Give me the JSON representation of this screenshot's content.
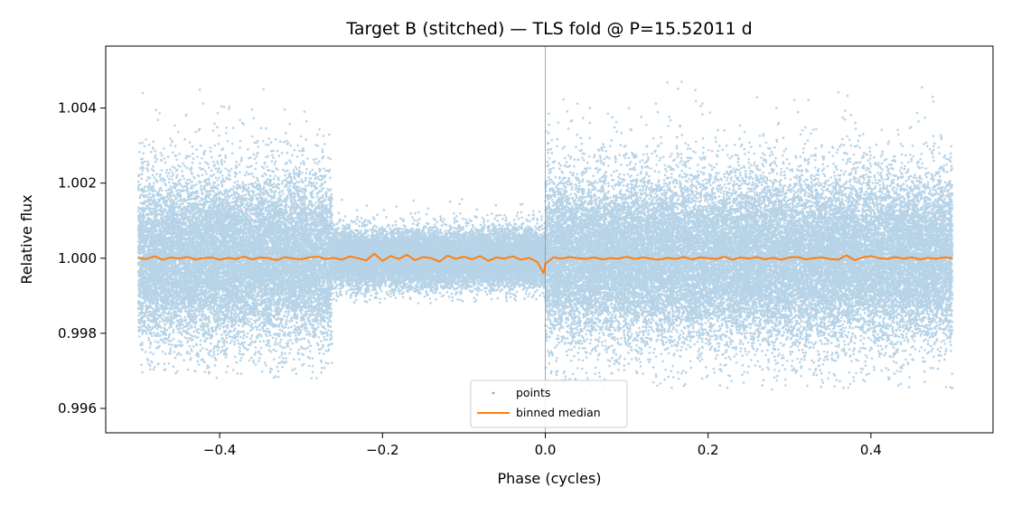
{
  "chart_data": {
    "type": "scatter",
    "title": "Target B (stitched) — TLS fold @ P=15.52011 d",
    "xlabel": "Phase (cycles)",
    "ylabel": "Relative flux",
    "xlim": [
      -0.54,
      0.55
    ],
    "ylim": [
      0.99535,
      1.00565
    ],
    "x_ticks": [
      -0.4,
      -0.2,
      0.0,
      0.2,
      0.4
    ],
    "x_tick_labels": [
      "−0.4",
      "−0.2",
      "0.0",
      "0.2",
      "0.4"
    ],
    "y_ticks": [
      0.996,
      0.998,
      1.0,
      1.002,
      1.004
    ],
    "y_tick_labels": [
      "0.996",
      "0.998",
      "1.000",
      "1.002",
      "1.004"
    ],
    "grid": false,
    "vline_x": 0.0,
    "legend": {
      "position": "bottom-center",
      "entries": [
        {
          "label": "points",
          "marker": "dot",
          "color": "#1f77b4"
        },
        {
          "label": "binned median",
          "marker": "line",
          "color": "#ff7f0e"
        }
      ]
    },
    "series": [
      {
        "name": "points",
        "kind": "scatter",
        "color": "#1f77b4",
        "n_points": 60000,
        "x_range": [
          -0.5,
          0.5
        ],
        "center": 1.0,
        "segments": [
          {
            "x_range": [
              -0.5,
              -0.262
            ],
            "core_range": [
              0.9979,
              1.0021
            ],
            "spread_range": [
              0.9968,
              1.0045
            ]
          },
          {
            "x_range": [
              -0.262,
              0.0
            ],
            "core_range": [
              0.9994,
              1.0008
            ],
            "spread_range": [
              0.9988,
              1.0016
            ]
          },
          {
            "x_range": [
              0.0,
              0.5
            ],
            "core_range": [
              0.9979,
              1.0021
            ],
            "spread_range": [
              0.9965,
              1.0048
            ]
          }
        ]
      },
      {
        "name": "binned median",
        "kind": "line",
        "color": "#ff7f0e",
        "x": [
          -0.5,
          -0.49,
          -0.48,
          -0.47,
          -0.46,
          -0.45,
          -0.44,
          -0.43,
          -0.42,
          -0.41,
          -0.4,
          -0.39,
          -0.38,
          -0.37,
          -0.36,
          -0.35,
          -0.34,
          -0.33,
          -0.32,
          -0.31,
          -0.3,
          -0.29,
          -0.28,
          -0.27,
          -0.26,
          -0.25,
          -0.24,
          -0.23,
          -0.22,
          -0.21,
          -0.2,
          -0.19,
          -0.18,
          -0.17,
          -0.16,
          -0.15,
          -0.14,
          -0.13,
          -0.12,
          -0.11,
          -0.1,
          -0.09,
          -0.08,
          -0.07,
          -0.06,
          -0.05,
          -0.04,
          -0.03,
          -0.02,
          -0.01,
          -0.002,
          0.0,
          0.01,
          0.02,
          0.03,
          0.04,
          0.05,
          0.06,
          0.07,
          0.08,
          0.09,
          0.1,
          0.11,
          0.12,
          0.13,
          0.14,
          0.15,
          0.16,
          0.17,
          0.18,
          0.19,
          0.2,
          0.21,
          0.22,
          0.23,
          0.24,
          0.25,
          0.26,
          0.27,
          0.28,
          0.29,
          0.3,
          0.31,
          0.32,
          0.33,
          0.34,
          0.35,
          0.36,
          0.37,
          0.38,
          0.39,
          0.4,
          0.41,
          0.42,
          0.43,
          0.44,
          0.45,
          0.46,
          0.47,
          0.48,
          0.49,
          0.5
        ],
        "values": [
          1.0,
          0.99998,
          1.00005,
          0.99996,
          1.00002,
          0.99999,
          1.00003,
          0.99997,
          1.0,
          1.00002,
          0.99996,
          1.00001,
          0.99998,
          1.00004,
          0.99997,
          1.00002,
          1.0,
          0.99995,
          1.00003,
          0.99999,
          0.99997,
          1.00002,
          1.00004,
          0.99998,
          1.00001,
          0.99996,
          1.00005,
          1.0,
          0.99994,
          1.00012,
          0.99993,
          1.00006,
          0.99998,
          1.00009,
          0.99995,
          1.00003,
          1.0,
          0.99991,
          1.00007,
          0.99998,
          1.00004,
          0.99997,
          1.00006,
          0.99993,
          1.00002,
          0.99999,
          1.00005,
          0.99996,
          1.00001,
          0.9999,
          0.9996,
          0.99985,
          1.00002,
          0.99999,
          1.00003,
          1.0,
          0.99998,
          1.00002,
          0.99997,
          1.0,
          0.99999,
          1.00004,
          0.99998,
          1.00002,
          0.99999,
          0.99996,
          1.00001,
          0.99998,
          1.00003,
          0.99997,
          1.00002,
          1.0,
          0.99998,
          1.00004,
          0.99996,
          1.00002,
          0.99999,
          1.00003,
          0.99997,
          1.00001,
          0.99996,
          1.00002,
          1.00003,
          0.99997,
          1.0,
          1.00002,
          0.99998,
          0.99996,
          1.00008,
          0.99995,
          1.00002,
          1.00006,
          1.0,
          0.99998,
          1.00003,
          0.99999,
          1.00002,
          0.99997,
          1.00001,
          0.99999,
          1.00002,
          1.0
        ]
      }
    ]
  }
}
